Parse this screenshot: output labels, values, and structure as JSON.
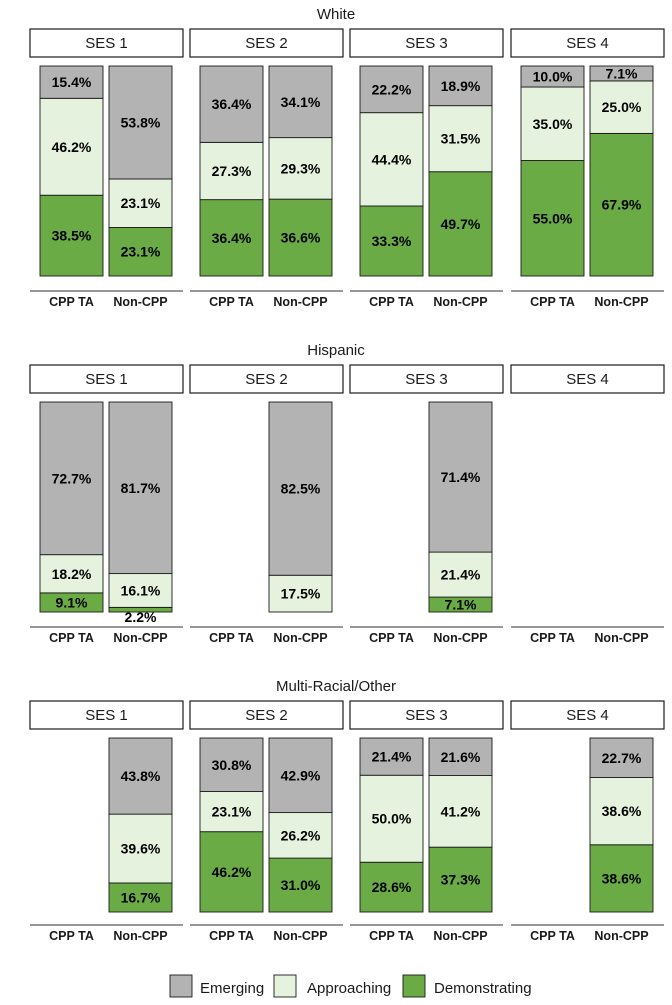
{
  "chart_data": {
    "type": "stacked-bar",
    "value_unit": "percent",
    "x_categories": [
      "CPP TA",
      "Non-CPP"
    ],
    "facet_columns": [
      "SES 1",
      "SES 2",
      "SES 3",
      "SES 4"
    ],
    "series": [
      {
        "name": "Emerging",
        "color": "#b3b3b3"
      },
      {
        "name": "Approaching",
        "color": "#e5f2de"
      },
      {
        "name": "Demonstrating",
        "color": "#6aab46"
      }
    ],
    "legend": {
      "position": "bottom",
      "labels": [
        "Emerging",
        "Approaching",
        "Demonstrating"
      ]
    },
    "groups": [
      {
        "title": "White",
        "panels": [
          {
            "ses": "SES 1",
            "bars": [
              {
                "x": "CPP TA",
                "Emerging": 15.4,
                "Approaching": 46.2,
                "Demonstrating": 38.5,
                "labels": {
                  "Emerging": "15.4%",
                  "Approaching": "46.2%",
                  "Demonstrating": "38.5%"
                }
              },
              {
                "x": "Non-CPP",
                "Emerging": 53.8,
                "Approaching": 23.1,
                "Demonstrating": 23.1,
                "labels": {
                  "Emerging": "53.8%",
                  "Approaching": "23.1%",
                  "Demonstrating": "23.1%"
                }
              }
            ]
          },
          {
            "ses": "SES 2",
            "bars": [
              {
                "x": "CPP TA",
                "Emerging": 36.4,
                "Approaching": 27.3,
                "Demonstrating": 36.4,
                "labels": {
                  "Emerging": "36.4%",
                  "Approaching": "27.3%",
                  "Demonstrating": "36.4%"
                }
              },
              {
                "x": "Non-CPP",
                "Emerging": 34.1,
                "Approaching": 29.3,
                "Demonstrating": 36.6,
                "labels": {
                  "Emerging": "34.1%",
                  "Approaching": "29.3%",
                  "Demonstrating": "36.6%"
                }
              }
            ]
          },
          {
            "ses": "SES 3",
            "bars": [
              {
                "x": "CPP TA",
                "Emerging": 22.2,
                "Approaching": 44.4,
                "Demonstrating": 33.3,
                "labels": {
                  "Emerging": "22.2%",
                  "Approaching": "44.4%",
                  "Demonstrating": "33.3%"
                }
              },
              {
                "x": "Non-CPP",
                "Emerging": 18.9,
                "Approaching": 31.5,
                "Demonstrating": 49.7,
                "labels": {
                  "Emerging": "18.9%",
                  "Approaching": "31.5%",
                  "Demonstrating": "49.7%"
                }
              }
            ]
          },
          {
            "ses": "SES 4",
            "bars": [
              {
                "x": "CPP TA",
                "Emerging": 10.0,
                "Approaching": 35.0,
                "Demonstrating": 55.0,
                "labels": {
                  "Emerging": "10.0%",
                  "Approaching": "35.0%",
                  "Demonstrating": "55.0%"
                }
              },
              {
                "x": "Non-CPP",
                "Emerging": 7.1,
                "Approaching": 25.0,
                "Demonstrating": 67.9,
                "labels": {
                  "Emerging": "7.1%",
                  "Approaching": "25.0%",
                  "Demonstrating": "67.9%"
                }
              }
            ]
          }
        ]
      },
      {
        "title": "Hispanic",
        "panels": [
          {
            "ses": "SES 1",
            "bars": [
              {
                "x": "CPP TA",
                "Emerging": 72.7,
                "Approaching": 18.2,
                "Demonstrating": 9.1,
                "labels": {
                  "Emerging": "72.7%",
                  "Approaching": "18.2%",
                  "Demonstrating": "9.1%"
                }
              },
              {
                "x": "Non-CPP",
                "Emerging": 81.7,
                "Approaching": 16.1,
                "Demonstrating": 2.2,
                "labels": {
                  "Emerging": "81.7%",
                  "Approaching": "16.1%",
                  "Demonstrating": "2.2%"
                }
              }
            ]
          },
          {
            "ses": "SES 2",
            "bars": [
              {
                "x": "CPP TA"
              },
              {
                "x": "Non-CPP",
                "Emerging": 82.5,
                "Approaching": 17.5,
                "Demonstrating": 0,
                "labels": {
                  "Emerging": "82.5%",
                  "Approaching": "17.5%"
                }
              }
            ]
          },
          {
            "ses": "SES 3",
            "bars": [
              {
                "x": "CPP TA"
              },
              {
                "x": "Non-CPP",
                "Emerging": 71.4,
                "Approaching": 21.4,
                "Demonstrating": 7.1,
                "labels": {
                  "Emerging": "71.4%",
                  "Approaching": "21.4%",
                  "Demonstrating": "7.1%"
                }
              }
            ]
          },
          {
            "ses": "SES 4",
            "bars": [
              {
                "x": "CPP TA"
              },
              {
                "x": "Non-CPP"
              }
            ]
          }
        ]
      },
      {
        "title": "Multi-Racial/Other",
        "panels": [
          {
            "ses": "SES 1",
            "bars": [
              {
                "x": "CPP TA"
              },
              {
                "x": "Non-CPP",
                "Emerging": 43.8,
                "Approaching": 39.6,
                "Demonstrating": 16.7,
                "labels": {
                  "Emerging": "43.8%",
                  "Approaching": "39.6%",
                  "Demonstrating": "16.7%"
                }
              }
            ]
          },
          {
            "ses": "SES 2",
            "bars": [
              {
                "x": "CPP TA",
                "Emerging": 30.8,
                "Approaching": 23.1,
                "Demonstrating": 46.2,
                "labels": {
                  "Emerging": "30.8%",
                  "Approaching": "23.1%",
                  "Demonstrating": "46.2%"
                }
              },
              {
                "x": "Non-CPP",
                "Emerging": 42.9,
                "Approaching": 26.2,
                "Demonstrating": 31.0,
                "labels": {
                  "Emerging": "42.9%",
                  "Approaching": "26.2%",
                  "Demonstrating": "31.0%"
                }
              }
            ]
          },
          {
            "ses": "SES 3",
            "bars": [
              {
                "x": "CPP TA",
                "Emerging": 21.4,
                "Approaching": 50.0,
                "Demonstrating": 28.6,
                "labels": {
                  "Emerging": "21.4%",
                  "Approaching": "50.0%",
                  "Demonstrating": "28.6%"
                }
              },
              {
                "x": "Non-CPP",
                "Emerging": 21.6,
                "Approaching": 41.2,
                "Demonstrating": 37.3,
                "labels": {
                  "Emerging": "21.6%",
                  "Approaching": "41.2%",
                  "Demonstrating": "37.3%"
                }
              }
            ]
          },
          {
            "ses": "SES 4",
            "bars": [
              {
                "x": "CPP TA"
              },
              {
                "x": "Non-CPP",
                "Emerging": 22.7,
                "Approaching": 38.6,
                "Demonstrating": 38.6,
                "labels": {
                  "Emerging": "22.7%",
                  "Approaching": "38.6%",
                  "Demonstrating": "38.6%"
                }
              }
            ]
          }
        ]
      }
    ]
  }
}
